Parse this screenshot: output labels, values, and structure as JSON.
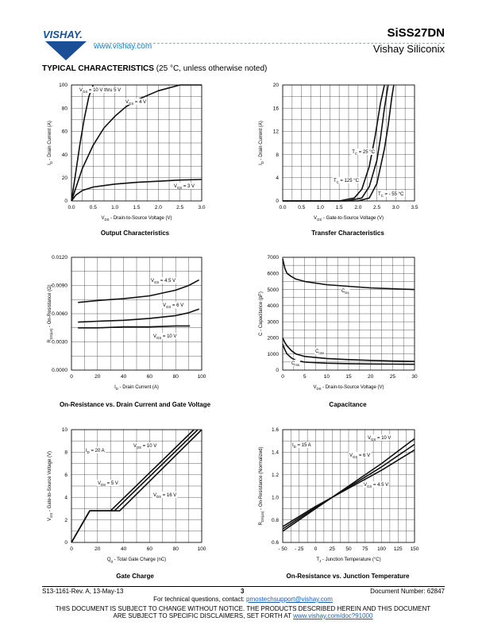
{
  "header": {
    "brand": "VISHAY.",
    "website": "www.vishay.com",
    "part_number": "SiSS27DN",
    "company": "Vishay Siliconix"
  },
  "section": {
    "title": "TYPICAL CHARACTERISTICS",
    "subtitle": " (25 °C, unless otherwise noted)"
  },
  "charts": [
    {
      "caption": "Output Characteristics",
      "chart_data": {
        "type": "line",
        "xlabel": "V_DS - Drain-to-Source Voltage (V)",
        "ylabel": "I_D - Drain Current (A)",
        "xlim": [
          0,
          3.0
        ],
        "ylim": [
          0,
          100
        ],
        "xticks": [
          "0.0",
          "0.5",
          "1.0",
          "1.5",
          "2.0",
          "2.5",
          "3.0"
        ],
        "yticks": [
          "0",
          "20",
          "40",
          "60",
          "80",
          "100"
        ],
        "series": [
          {
            "name": "V_GS = 10 V thru 5 V",
            "x": [
              0,
              0.1,
              0.2,
              0.3,
              0.4,
              0.5
            ],
            "y": [
              0,
              25,
              50,
              72,
              90,
              100
            ]
          },
          {
            "name": "V_GS = 4 V",
            "x": [
              0,
              0.25,
              0.5,
              0.75,
              1.0,
              1.25,
              1.5,
              2.0,
              2.5,
              3.0
            ],
            "y": [
              0,
              28,
              48,
              63,
              73,
              81,
              87,
              95,
              100,
              100
            ]
          },
          {
            "name": "V_GS = 3 V",
            "x": [
              0,
              0.1,
              0.25,
              0.5,
              1.0,
              1.5,
              2.0,
              2.5,
              3.0
            ],
            "y": [
              0,
              5,
              9,
              12,
              14.5,
              16,
              17,
              18,
              18.5
            ]
          }
        ],
        "annotations": [
          "V_GS = 10 V thru 5 V",
          "V_GS = 4 V",
          "V_GS = 3 V"
        ]
      }
    },
    {
      "caption": "Transfer Characteristics",
      "chart_data": {
        "type": "line",
        "xlabel": "V_GS - Gate-to-Source Voltage (V)",
        "ylabel": "I_D - Drain Current (A)",
        "xlim": [
          0,
          3.5
        ],
        "ylim": [
          0,
          20
        ],
        "xticks": [
          "0.0",
          "0.5",
          "1.0",
          "1.5",
          "2.0",
          "2.5",
          "3.0",
          "3.5"
        ],
        "yticks": [
          "0",
          "4",
          "8",
          "12",
          "16",
          "20"
        ],
        "series": [
          {
            "name": "T_C = 125 °C",
            "x": [
              0,
              1.5,
              1.9,
              2.1,
              2.3,
              2.45,
              2.6,
              2.7
            ],
            "y": [
              0,
              0,
              0.5,
              2,
              6,
              11,
              17,
              20
            ]
          },
          {
            "name": "T_C = 25 °C",
            "x": [
              0,
              1.7,
              2.1,
              2.3,
              2.5,
              2.6,
              2.7,
              2.8
            ],
            "y": [
              0,
              0,
              0.5,
              2.5,
              7,
              11,
              16,
              20
            ]
          },
          {
            "name": "T_C = - 55 °C",
            "x": [
              0,
              2.0,
              2.3,
              2.5,
              2.7,
              2.8,
              2.9,
              2.95
            ],
            "y": [
              0,
              0,
              0.5,
              3,
              9,
              13,
              18,
              20
            ]
          }
        ],
        "annotations": [
          "T_C = 25 °C",
          "T_C = 125 °C",
          "T_C = - 55 °C"
        ]
      }
    },
    {
      "caption": "On-Resistance vs. Drain Current and Gate Voltage",
      "chart_data": {
        "type": "line",
        "xlabel": "I_D - Drain Current (A)",
        "ylabel": "R_DS(on) - On-Resistance (Ω)",
        "xlim": [
          0,
          100
        ],
        "ylim": [
          0,
          0.012
        ],
        "xticks": [
          "0",
          "20",
          "40",
          "60",
          "80",
          "100"
        ],
        "yticks": [
          "0.0000",
          "0.0030",
          "0.0060",
          "0.0090",
          "0.0120"
        ],
        "series": [
          {
            "name": "V_GS = 4.5 V",
            "x": [
              5,
              20,
              40,
              60,
              80,
              90,
              98
            ],
            "y": [
              0.0072,
              0.0074,
              0.0076,
              0.0079,
              0.0085,
              0.009,
              0.0096
            ]
          },
          {
            "name": "V_GS = 6 V",
            "x": [
              5,
              20,
              40,
              60,
              80,
              90,
              98
            ],
            "y": [
              0.0051,
              0.0052,
              0.0053,
              0.0055,
              0.0058,
              0.0061,
              0.0065
            ]
          },
          {
            "name": "V_GS = 10 V",
            "x": [
              5,
              20,
              40,
              60,
              80,
              91
            ],
            "y": [
              0.0045,
              0.0045,
              0.0046,
              0.0046,
              0.0047,
              0.0047
            ]
          }
        ],
        "annotations": [
          "V_GS = 4.5 V",
          "V_GS = 6 V",
          "V_GS = 10 V"
        ]
      }
    },
    {
      "caption": "Capacitance",
      "chart_data": {
        "type": "line",
        "xlabel": "V_DS - Drain-to-Source Voltage (V)",
        "ylabel": "C - Capacitance (pF)",
        "xlim": [
          0,
          30
        ],
        "ylim": [
          0,
          7000
        ],
        "xticks": [
          "0",
          "5",
          "10",
          "15",
          "20",
          "25",
          "30"
        ],
        "yticks": [
          "0",
          "1000",
          "2000",
          "3000",
          "4000",
          "5000",
          "6000",
          "7000"
        ],
        "series": [
          {
            "name": "C_iss",
            "x": [
              0,
              0.5,
              1,
              2,
              3,
              5,
              10,
              15,
              20,
              25,
              30
            ],
            "y": [
              6900,
              6300,
              6000,
              5800,
              5650,
              5500,
              5300,
              5200,
              5100,
              5050,
              5000
            ]
          },
          {
            "name": "C_oss",
            "x": [
              0,
              0.5,
              1,
              2,
              3,
              5,
              10,
              15,
              20,
              25,
              30
            ],
            "y": [
              2000,
              1700,
              1500,
              1200,
              1000,
              850,
              720,
              650,
              600,
              560,
              540
            ]
          },
          {
            "name": "C_rss",
            "x": [
              0,
              0.5,
              1,
              2,
              3,
              5,
              10,
              15,
              20,
              25,
              30
            ],
            "y": [
              1600,
              1250,
              1000,
              750,
              600,
              500,
              430,
              400,
              380,
              370,
              360
            ]
          }
        ],
        "annotations": [
          "C_iss",
          "C_oss",
          "C_rss"
        ]
      }
    },
    {
      "caption": "Gate Charge",
      "chart_data": {
        "type": "line",
        "xlabel": "Q_g - Total Gate Charge (nC)",
        "ylabel": "V_GS - Gate-to-Source Voltage (V)",
        "xlim": [
          0,
          100
        ],
        "ylim": [
          0,
          10
        ],
        "xticks": [
          "0",
          "20",
          "40",
          "60",
          "80",
          "100"
        ],
        "yticks": [
          "0",
          "2",
          "4",
          "6",
          "8",
          "10"
        ],
        "series": [
          {
            "name": "V_DS = 5 V",
            "x": [
              0,
              14,
              30,
              94
            ],
            "y": [
              0,
              2.8,
              2.8,
              10
            ]
          },
          {
            "name": "V_DS = 10 V",
            "x": [
              0,
              14,
              33,
              97
            ],
            "y": [
              0,
              2.8,
              2.8,
              10
            ]
          },
          {
            "name": "V_DS = 16 V",
            "x": [
              0,
              14,
              37,
              100
            ],
            "y": [
              0,
              2.8,
              2.8,
              10
            ]
          }
        ],
        "annotations": [
          "I_D = 20 A",
          "V_DS = 10 V",
          "V_DS = 5 V",
          "V_DS = 16 V"
        ]
      }
    },
    {
      "caption": "On-Resistance vs. Junction Temperature",
      "chart_data": {
        "type": "line",
        "xlabel": "T_J - Junction Temperature (°C)",
        "ylabel": "R_DS(on) - On-Resistance (Normalized)",
        "xlim": [
          -50,
          150
        ],
        "ylim": [
          0.6,
          1.6
        ],
        "xticks": [
          "- 50",
          "- 25",
          "0",
          "25",
          "50",
          "75",
          "100",
          "125",
          "150"
        ],
        "yticks": [
          "0.6",
          "0.8",
          "1.0",
          "1.2",
          "1.4",
          "1.6"
        ],
        "series": [
          {
            "name": "V_GS = 10 V",
            "x": [
              -50,
              0,
              25,
              50,
              100,
              150
            ],
            "y": [
              0.7,
              0.9,
              1.0,
              1.1,
              1.3,
              1.52
            ]
          },
          {
            "name": "V_GS = 6 V",
            "x": [
              -50,
              0,
              25,
              50,
              100,
              150
            ],
            "y": [
              0.72,
              0.91,
              1.0,
              1.09,
              1.27,
              1.47
            ]
          },
          {
            "name": "V_GS = 4.5 V",
            "x": [
              -50,
              0,
              25,
              50,
              100,
              150
            ],
            "y": [
              0.74,
              0.92,
              1.0,
              1.08,
              1.24,
              1.42
            ]
          }
        ],
        "annotations": [
          "I_D = 15 A",
          "V_GS = 10 V",
          "V_GS = 6 V",
          "V_GS = 4.5 V"
        ]
      }
    }
  ],
  "footer": {
    "revision": "S13-1161-Rev. A, 13-May-13",
    "page": "3",
    "document_number": "Document Number: 62847",
    "questions_text": "For technical questions, contact: ",
    "questions_email": "pmostechsupport@vishay.com",
    "notice_line1": "THIS DOCUMENT IS SUBJECT TO CHANGE WITHOUT NOTICE. THE PRODUCTS DESCRIBED HEREIN AND THIS DOCUMENT",
    "notice_line2": "ARE SUBJECT TO SPECIFIC DISCLAIMERS, SET FORTH AT ",
    "notice_link": "www.vishay.com/doc?91000"
  }
}
